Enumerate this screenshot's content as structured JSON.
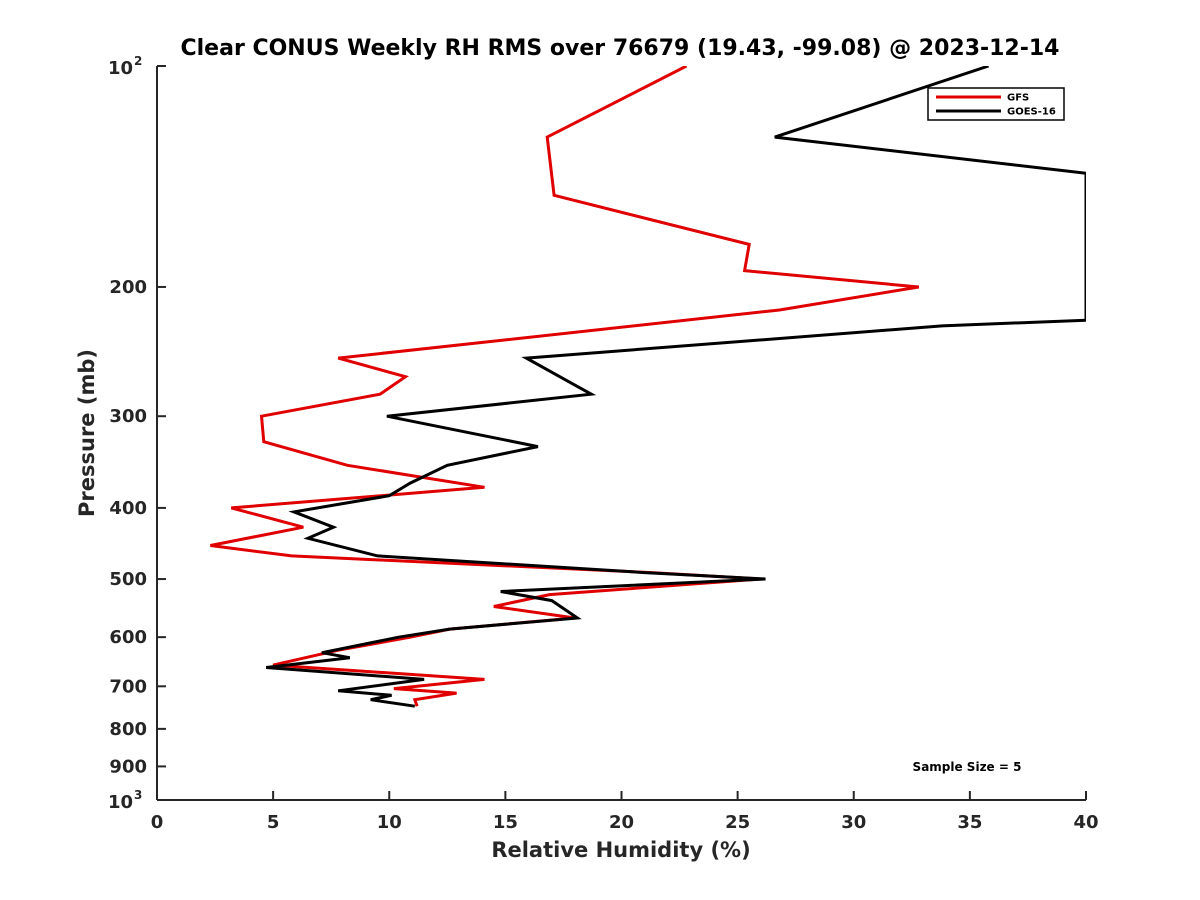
{
  "chart_data": {
    "type": "line",
    "title": "Clear CONUS Weekly RH RMS over 76679 (19.43, -99.08) @ 2023-12-14",
    "xlabel": "Relative Humidity (%)",
    "ylabel": "Pressure (mb)",
    "xlim": [
      0,
      40
    ],
    "ylim": [
      100,
      1000
    ],
    "y_scale": "log",
    "y_reversed": true,
    "x_ticks": [
      "0",
      "5",
      "10",
      "15",
      "20",
      "25",
      "30",
      "35",
      "40"
    ],
    "y_ticks": [
      {
        "value": 100,
        "base": "10",
        "exp": "2"
      },
      {
        "value": 200,
        "label": "200"
      },
      {
        "value": 300,
        "label": "300"
      },
      {
        "value": 400,
        "label": "400"
      },
      {
        "value": 500,
        "label": "500"
      },
      {
        "value": 600,
        "label": "600"
      },
      {
        "value": 700,
        "label": "700"
      },
      {
        "value": 800,
        "label": "800"
      },
      {
        "value": 900,
        "label": "900"
      },
      {
        "value": 1000,
        "base": "10",
        "exp": "3"
      }
    ],
    "legend_position": "top-right",
    "grid": false,
    "annotation": "Sample Size = 5",
    "series": [
      {
        "name": "GFS",
        "color": "#e00000",
        "points": [
          [
            22.8,
            100
          ],
          [
            16.8,
            125
          ],
          [
            17.1,
            150
          ],
          [
            25.5,
            175
          ],
          [
            25.3,
            190
          ],
          [
            32.8,
            200
          ],
          [
            26.8,
            215
          ],
          [
            7.8,
            250
          ],
          [
            10.7,
            265
          ],
          [
            9.6,
            280
          ],
          [
            4.5,
            300
          ],
          [
            4.6,
            325
          ],
          [
            8.2,
            350
          ],
          [
            14.1,
            375
          ],
          [
            3.2,
            400
          ],
          [
            6.3,
            425
          ],
          [
            2.3,
            450
          ],
          [
            5.8,
            465
          ],
          [
            21.3,
            490
          ],
          [
            26.0,
            500
          ],
          [
            16.9,
            525
          ],
          [
            14.5,
            545
          ],
          [
            18.0,
            565
          ],
          [
            12.6,
            585
          ],
          [
            10.9,
            600
          ],
          [
            7.8,
            625
          ],
          [
            5.0,
            655
          ],
          [
            14.1,
            685
          ],
          [
            10.2,
            705
          ],
          [
            12.9,
            715
          ],
          [
            11.1,
            730
          ],
          [
            11.2,
            745
          ]
        ]
      },
      {
        "name": "GOES-16",
        "color": "#000000",
        "points": [
          [
            35.8,
            100
          ],
          [
            26.6,
            125
          ],
          [
            40.0,
            140
          ],
          [
            40.0,
            222
          ],
          [
            33.8,
            226
          ],
          [
            15.9,
            250
          ],
          [
            18.7,
            280
          ],
          [
            9.9,
            300
          ],
          [
            16.4,
            330
          ],
          [
            12.5,
            350
          ],
          [
            10.9,
            370
          ],
          [
            10.0,
            385
          ],
          [
            5.9,
            405
          ],
          [
            7.6,
            425
          ],
          [
            6.5,
            440
          ],
          [
            9.5,
            465
          ],
          [
            21.0,
            490
          ],
          [
            26.2,
            500
          ],
          [
            14.8,
            520
          ],
          [
            17.0,
            535
          ],
          [
            18.1,
            565
          ],
          [
            12.6,
            585
          ],
          [
            10.4,
            600
          ],
          [
            7.1,
            630
          ],
          [
            8.3,
            640
          ],
          [
            4.7,
            660
          ],
          [
            11.5,
            685
          ],
          [
            7.8,
            710
          ],
          [
            10.1,
            720
          ],
          [
            9.2,
            730
          ],
          [
            11.1,
            745
          ]
        ]
      }
    ]
  }
}
